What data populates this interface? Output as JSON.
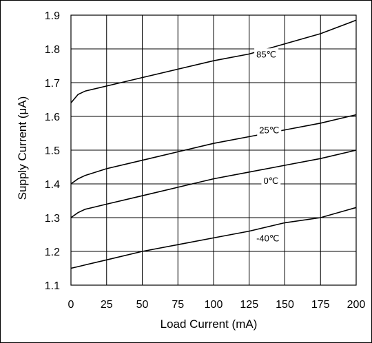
{
  "chart_data": {
    "type": "line",
    "xlabel": "Load Current (mA)",
    "ylabel": "Supply Current (μA)",
    "xlim": [
      0,
      200
    ],
    "ylim": [
      1.1,
      1.9
    ],
    "xticks": [
      0,
      25,
      50,
      75,
      100,
      125,
      150,
      175,
      200
    ],
    "yticks": [
      1.1,
      1.2,
      1.3,
      1.4,
      1.5,
      1.6,
      1.7,
      1.8,
      1.9
    ],
    "xtick_labels": [
      "0",
      "25",
      "50",
      "75",
      "100",
      "125",
      "150",
      "175",
      "200"
    ],
    "ytick_labels": [
      "1.1",
      "1.2",
      "1.3",
      "1.4",
      "1.5",
      "1.6",
      "1.7",
      "1.8",
      "1.9"
    ],
    "grid": true,
    "series": [
      {
        "name": "85℃",
        "label_at": [
          130,
          1.775
        ],
        "x": [
          0,
          5,
          10,
          25,
          50,
          75,
          100,
          125,
          150,
          175,
          200
        ],
        "y": [
          1.64,
          1.665,
          1.675,
          1.69,
          1.715,
          1.74,
          1.765,
          1.785,
          1.815,
          1.845,
          1.885
        ]
      },
      {
        "name": "25℃",
        "label_at": [
          132,
          1.55
        ],
        "x": [
          0,
          5,
          10,
          25,
          50,
          75,
          100,
          125,
          150,
          175,
          200
        ],
        "y": [
          1.4,
          1.415,
          1.425,
          1.445,
          1.47,
          1.495,
          1.52,
          1.54,
          1.56,
          1.58,
          1.605
        ]
      },
      {
        "name": "0℃",
        "label_at": [
          135,
          1.4
        ],
        "x": [
          0,
          5,
          10,
          25,
          50,
          75,
          100,
          125,
          150,
          175,
          200
        ],
        "y": [
          1.3,
          1.315,
          1.325,
          1.34,
          1.365,
          1.39,
          1.415,
          1.435,
          1.455,
          1.475,
          1.5
        ]
      },
      {
        "name": "-40℃",
        "label_at": [
          130,
          1.23
        ],
        "x": [
          0,
          5,
          10,
          25,
          50,
          75,
          100,
          125,
          150,
          175,
          200
        ],
        "y": [
          1.15,
          1.155,
          1.16,
          1.175,
          1.2,
          1.22,
          1.24,
          1.26,
          1.285,
          1.3,
          1.33
        ]
      }
    ]
  }
}
